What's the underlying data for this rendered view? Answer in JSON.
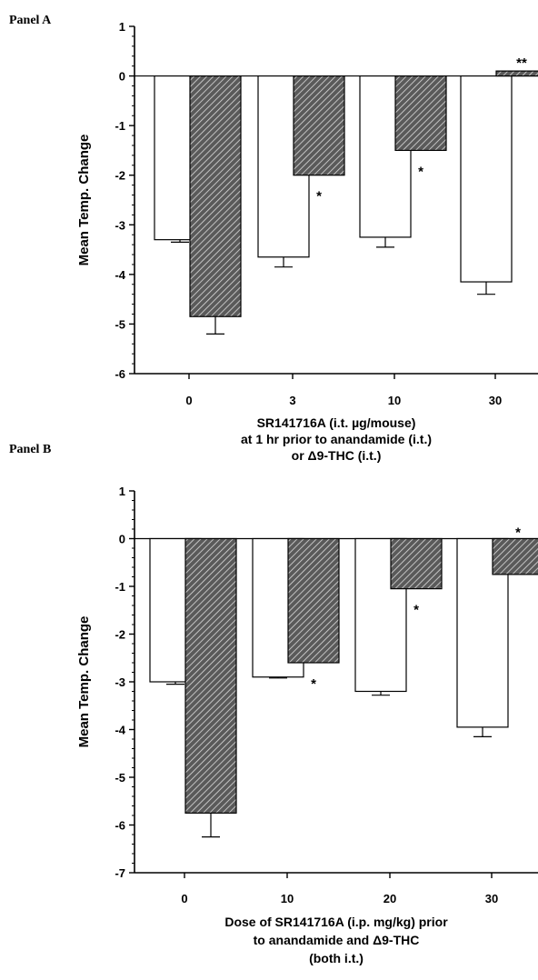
{
  "chart_data": [
    {
      "type": "bar",
      "panel_label": "Panel A",
      "categories": [
        "0",
        "3",
        "10",
        "30"
      ],
      "ylabel": "Mean Temp. Change",
      "xlabel": [
        "SR141716A  (i.t.  µg/mouse)",
        "at 1 hr prior to anandamide (i.t.)",
        "or Δ9-THC (i.t.)"
      ],
      "ylim": [
        -6,
        1
      ],
      "yticks": [
        "1",
        "0",
        "-1",
        "-2",
        "-3",
        "-4",
        "-5",
        "-6"
      ],
      "grid": false,
      "series": [
        {
          "values": [
            -3.3,
            -3.65,
            -3.25,
            -4.15
          ],
          "errors": [
            0.05,
            0.2,
            0.2,
            0.25
          ],
          "fill": "#ffffff",
          "hatched": false
        },
        {
          "values": [
            -4.85,
            -2.0,
            -1.5,
            0.1
          ],
          "errors": [
            0.35,
            0,
            0,
            0
          ],
          "fill": "#555555",
          "hatched": true
        }
      ],
      "significance": [
        "",
        "*",
        "*",
        "**"
      ]
    },
    {
      "type": "bar",
      "panel_label": "Panel B",
      "categories": [
        "0",
        "10",
        "20",
        "30"
      ],
      "ylabel": "Mean Temp. Change",
      "xlabel": [
        "Dose of SR141716A (i.p.   mg/kg) prior",
        "to anandamide and Δ9-THC",
        "(both i.t.)"
      ],
      "ylim": [
        -7,
        1
      ],
      "yticks": [
        "1",
        "0",
        "-1",
        "-2",
        "-3",
        "-4",
        "-5",
        "-6",
        "-7"
      ],
      "grid": false,
      "series": [
        {
          "values": [
            -3.0,
            -2.9,
            -3.2,
            -3.95
          ],
          "errors": [
            0.05,
            0.02,
            0.08,
            0.2
          ],
          "fill": "#ffffff",
          "hatched": false
        },
        {
          "values": [
            -5.75,
            -2.6,
            -1.05,
            -0.75
          ],
          "errors": [
            0.5,
            0,
            0,
            0
          ],
          "fill": "#555555",
          "hatched": true
        }
      ],
      "significance": [
        "",
        "*",
        "*",
        "*"
      ]
    }
  ]
}
